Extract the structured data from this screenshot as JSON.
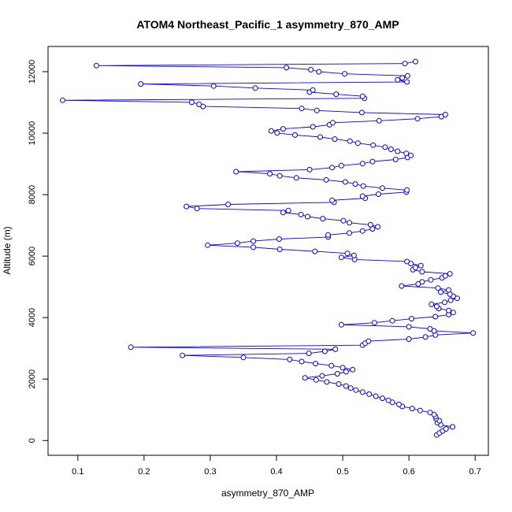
{
  "chart_data": {
    "type": "scatter",
    "title": "ATOM4 Northeast_Pacific_1 asymmetry_870_AMP",
    "xlabel": "asymmetry_870_AMP",
    "ylabel": "Altitude (m)",
    "xlim": [
      0.055,
      0.72
    ],
    "ylim": [
      -480,
      12820
    ],
    "xticks": [
      0.1,
      0.2,
      0.3,
      0.4,
      0.5,
      0.6,
      0.7
    ],
    "xtick_labels": [
      "0.1",
      "0.2",
      "0.3",
      "0.4",
      "0.5",
      "0.6",
      "0.7"
    ],
    "yticks": [
      0,
      2000,
      4000,
      6000,
      8000,
      10000,
      12000
    ],
    "ytick_labels": [
      "0",
      "2000",
      "4000",
      "6000",
      "8000",
      "10000",
      "12000"
    ],
    "grid": false,
    "connected": true,
    "marker": "open-circle",
    "color": "#0000ff",
    "series": [
      {
        "x": [
          0.642,
          0.646,
          0.651,
          0.656,
          0.666,
          0.648,
          0.643,
          0.646,
          0.641,
          0.64,
          0.638,
          0.632,
          0.617,
          0.605,
          0.59,
          0.585,
          0.575,
          0.569,
          0.56,
          0.55,
          0.54,
          0.53,
          0.52,
          0.512,
          0.505,
          0.494,
          0.476,
          0.46,
          0.443,
          0.469,
          0.492,
          0.505,
          0.515,
          0.5,
          0.483,
          0.459,
          0.438,
          0.42,
          0.35,
          0.258,
          0.449,
          0.473,
          0.489,
          0.18,
          0.53,
          0.534,
          0.539,
          0.6,
          0.625,
          0.64,
          0.697,
          0.638,
          0.632,
          0.6,
          0.498,
          0.548,
          0.575,
          0.604,
          0.64,
          0.66,
          0.667,
          0.66,
          0.645,
          0.642,
          0.634,
          0.654,
          0.663,
          0.673,
          0.667,
          0.662,
          0.648,
          0.66,
          0.644,
          0.589,
          0.614,
          0.62,
          0.633,
          0.65,
          0.655,
          0.662,
          0.62,
          0.606,
          0.61,
          0.618,
          0.603,
          0.597,
          0.518,
          0.498,
          0.517,
          0.507,
          0.458,
          0.405,
          0.365,
          0.296,
          0.341,
          0.365,
          0.404,
          0.478,
          0.478,
          0.51,
          0.53,
          0.545,
          0.553,
          0.542,
          0.51,
          0.501,
          0.47,
          0.447,
          0.437,
          0.41,
          0.418,
          0.28,
          0.264,
          0.327,
          0.487,
          0.484,
          0.534,
          0.53,
          0.554,
          0.596,
          0.597,
          0.56,
          0.531,
          0.519,
          0.504,
          0.475,
          0.43,
          0.405,
          0.39,
          0.339,
          0.45,
          0.484,
          0.498,
          0.53,
          0.545,
          0.58,
          0.598,
          0.603,
          0.596,
          0.583,
          0.573,
          0.564,
          0.546,
          0.523,
          0.511,
          0.488,
          0.466,
          0.428,
          0.401,
          0.392,
          0.41,
          0.455,
          0.48,
          0.485,
          0.555,
          0.613,
          0.649,
          0.655,
          0.529,
          0.461,
          0.438,
          0.289,
          0.283,
          0.272,
          0.077,
          0.533,
          0.53,
          0.49,
          0.45,
          0.455,
          0.368,
          0.305,
          0.195,
          0.597,
          0.583,
          0.59,
          0.598,
          0.503,
          0.464,
          0.452,
          0.415,
          0.128,
          0.594,
          0.61
        ]
      }
    ]
  }
}
